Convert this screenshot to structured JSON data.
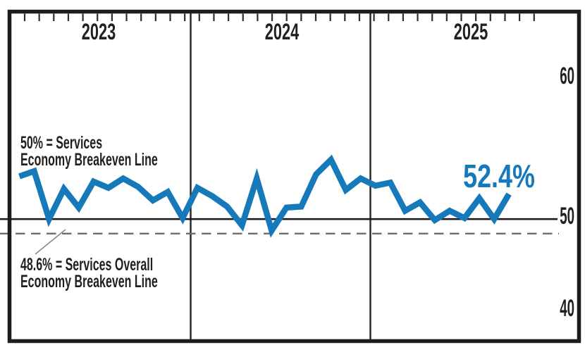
{
  "chart_data": {
    "type": "line",
    "x_months": [
      "2023-01",
      "2023-02",
      "2023-03",
      "2023-04",
      "2023-05",
      "2023-06",
      "2023-07",
      "2023-08",
      "2023-09",
      "2023-10",
      "2023-11",
      "2023-12",
      "2024-01",
      "2024-02",
      "2024-03",
      "2024-04",
      "2024-05",
      "2024-06",
      "2024-07",
      "2024-08",
      "2024-09",
      "2024-10",
      "2024-11",
      "2024-12",
      "2025-01",
      "2025-02",
      "2025-03",
      "2025-04",
      "2025-05",
      "2025-06",
      "2025-07",
      "2025-08",
      "2025-09",
      "2025-10"
    ],
    "values": [
      54.1,
      54.6,
      50.0,
      52.9,
      51.1,
      53.6,
      53.0,
      53.9,
      53.1,
      51.8,
      52.6,
      50.1,
      53.0,
      52.2,
      51.2,
      49.4,
      53.9,
      48.9,
      51.1,
      51.2,
      54.3,
      55.7,
      52.8,
      53.9,
      53.2,
      53.5,
      50.8,
      51.6,
      49.9,
      50.8,
      50.1,
      52.0,
      50.0,
      52.4
    ],
    "x_years": [
      "2023",
      "2024",
      "2025"
    ],
    "y_tick_labels": [
      "60",
      "50",
      "40"
    ],
    "y_tick_values": [
      60,
      50,
      40
    ],
    "latest_value": 52.4,
    "latest_value_label": "52.4%",
    "reference_lines": [
      {
        "value": 50.0,
        "style": "solid",
        "label_line1": "50% = Services",
        "label_line2": "Economy Breakeven Line"
      },
      {
        "value": 48.6,
        "style": "dashed",
        "label_line1": "48.6% = Services Overall",
        "label_line2": "Economy Breakeven Line"
      }
    ],
    "layout_hints": {
      "grid": false,
      "legend": "none",
      "y_axis_side": "right",
      "top_ticks": "monthly",
      "year_dividers": true
    }
  },
  "colors": {
    "line": "#1679b9",
    "accent_text": "#1679b9",
    "ink": "#221f1f",
    "dashed_line": "#6e6e6e",
    "callout_line": "#8a8a8a"
  }
}
